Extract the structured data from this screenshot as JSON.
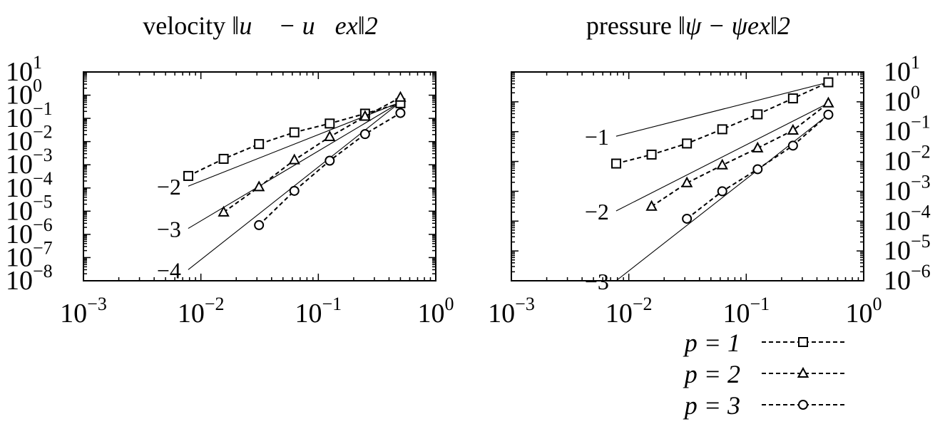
{
  "chart_data": [
    {
      "type": "line",
      "title_main": "velocity",
      "title_math": "‖u⃗ − u⃗ex‖2",
      "xscale": "log",
      "yscale": "log",
      "xlim": [
        0.001,
        1
      ],
      "ylim": [
        1e-08,
        10
      ],
      "x_ticks": [
        {
          "base": "10",
          "exp": "−3"
        },
        {
          "base": "10",
          "exp": "−2"
        },
        {
          "base": "10",
          "exp": "−1"
        },
        {
          "base": "10",
          "exp": "0"
        }
      ],
      "y_ticks": [
        {
          "base": "10",
          "exp": "1"
        },
        {
          "base": "10",
          "exp": "0"
        },
        {
          "base": "10",
          "exp": "−1"
        },
        {
          "base": "10",
          "exp": "−2"
        },
        {
          "base": "10",
          "exp": "−3"
        },
        {
          "base": "10",
          "exp": "−4"
        },
        {
          "base": "10",
          "exp": "−5"
        },
        {
          "base": "10",
          "exp": "−6"
        },
        {
          "base": "10",
          "exp": "−7"
        },
        {
          "base": "10",
          "exp": "−8"
        }
      ],
      "y_axis_side": "left",
      "series": [
        {
          "marker": "square",
          "x": [
            0.0078125,
            0.015625,
            0.03125,
            0.0625,
            0.125,
            0.25,
            0.5
          ],
          "y": [
            0.00033,
            0.0018,
            0.0078,
            0.025,
            0.06,
            0.16,
            0.45
          ]
        },
        {
          "marker": "triangle",
          "x": [
            0.015625,
            0.03125,
            0.0625,
            0.125,
            0.25,
            0.5
          ],
          "y": [
            9e-06,
            0.00011,
            0.0016,
            0.016,
            0.12,
            0.8
          ]
        },
        {
          "marker": "circle",
          "x": [
            0.03125,
            0.0625,
            0.125,
            0.25,
            0.5
          ],
          "y": [
            2.5e-06,
            7.5e-05,
            0.0015,
            0.021,
            0.17
          ]
        }
      ],
      "reference_lines": [
        {
          "label": "−2",
          "x": [
            0.0078,
            0.5
          ],
          "y": [
            0.00012,
            0.5
          ]
        },
        {
          "label": "−3",
          "x": [
            0.0078,
            0.5
          ],
          "y": [
            1.8e-06,
            0.5
          ]
        },
        {
          "label": "−4",
          "x": [
            0.0078,
            0.5
          ],
          "y": [
            3e-08,
            0.5
          ]
        }
      ]
    },
    {
      "type": "line",
      "title_main": "pressure",
      "title_math": "‖ψ − ψex‖2",
      "xscale": "log",
      "yscale": "log",
      "xlim": [
        0.001,
        1
      ],
      "ylim": [
        1e-06,
        10
      ],
      "x_ticks": [
        {
          "base": "10",
          "exp": "−3"
        },
        {
          "base": "10",
          "exp": "−2"
        },
        {
          "base": "10",
          "exp": "−1"
        },
        {
          "base": "10",
          "exp": "0"
        }
      ],
      "y_ticks": [
        {
          "base": "10",
          "exp": "1"
        },
        {
          "base": "10",
          "exp": "0"
        },
        {
          "base": "10",
          "exp": "−1"
        },
        {
          "base": "10",
          "exp": "−2"
        },
        {
          "base": "10",
          "exp": "−3"
        },
        {
          "base": "10",
          "exp": "−4"
        },
        {
          "base": "10",
          "exp": "−5"
        },
        {
          "base": "10",
          "exp": "−6"
        }
      ],
      "y_axis_side": "right",
      "series": [
        {
          "marker": "square",
          "x": [
            0.0078125,
            0.015625,
            0.03125,
            0.0625,
            0.125,
            0.25,
            0.5
          ],
          "y": [
            0.0085,
            0.017,
            0.04,
            0.12,
            0.38,
            1.3,
            4.5
          ]
        },
        {
          "marker": "triangle",
          "x": [
            0.015625,
            0.03125,
            0.0625,
            0.125,
            0.25,
            0.5
          ],
          "y": [
            0.00031,
            0.0019,
            0.0075,
            0.028,
            0.11,
            0.9
          ]
        },
        {
          "marker": "circle",
          "x": [
            0.03125,
            0.0625,
            0.125,
            0.25,
            0.5
          ],
          "y": [
            0.00012,
            0.001,
            0.0055,
            0.034,
            0.37
          ]
        }
      ],
      "reference_lines": [
        {
          "label": "−1",
          "x": [
            0.0078,
            0.5
          ],
          "y": [
            0.07,
            4.5
          ]
        },
        {
          "label": "−2",
          "x": [
            0.0078,
            0.5
          ],
          "y": [
            0.00022,
            0.9
          ]
        },
        {
          "label": "−3",
          "x": [
            0.0078,
            0.5
          ],
          "y": [
            1e-06,
            0.37
          ]
        }
      ]
    }
  ],
  "legend": {
    "placement": "bottom-right",
    "entries": [
      {
        "label": "p = 1",
        "marker": "square"
      },
      {
        "label": "p = 2",
        "marker": "triangle"
      },
      {
        "label": "p = 3",
        "marker": "circle"
      }
    ]
  }
}
